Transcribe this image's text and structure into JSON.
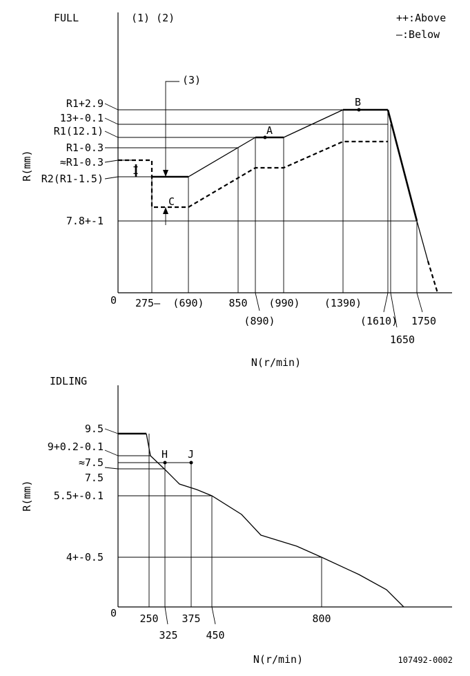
{
  "full": {
    "title": "FULL",
    "notes": "(1) (2)",
    "legend_above": "++:Above",
    "legend_below": "—:Below",
    "y_axis_label": "R(mm)",
    "x_axis_label": "N(r/min)",
    "origin": "0",
    "y_labels": [
      "R1+2.9",
      "13+-0.1",
      "R1(12.1)",
      "R1-0.3",
      "≈R1-0.3",
      "R2(R1-1.5)",
      "7.8+-1"
    ],
    "x_labels": [
      "275—",
      "(690)",
      "850",
      "(890)",
      "(990)",
      "(1390)",
      "(1610)",
      "1650",
      "1750"
    ],
    "callout_3": "(3)",
    "points": {
      "A": "A",
      "B": "B",
      "C": "C",
      "I": "I"
    }
  },
  "idling": {
    "title": "IDLING",
    "y_axis_label": "R(mm)",
    "x_axis_label": "N(r/min)",
    "origin": "0",
    "y_labels": [
      "9.5",
      "9+0.2-0.1",
      "≈7.5",
      "7.5",
      "5.5+-0.1",
      "4+-0.5"
    ],
    "x_labels": [
      "250",
      "325",
      "375",
      "450",
      "800"
    ],
    "points": {
      "H": "H",
      "J": "J"
    }
  },
  "footer": {
    "doc_code": "107492-0002"
  }
}
